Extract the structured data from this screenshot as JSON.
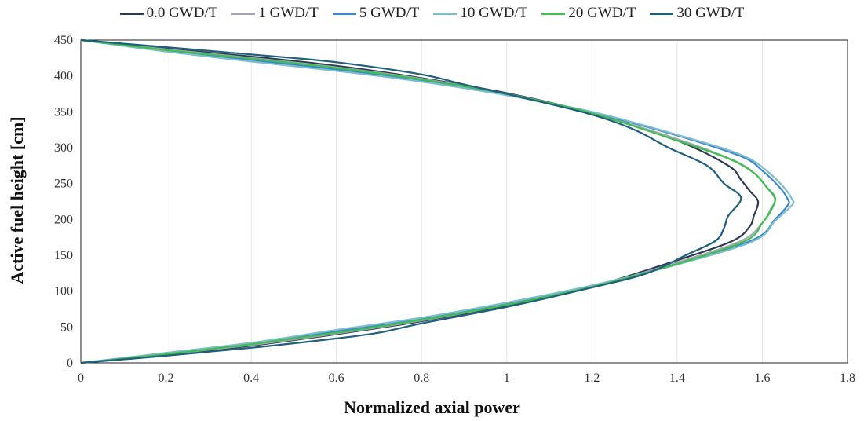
{
  "chart_data": {
    "type": "line",
    "xlabel": "Normalized  axial power",
    "ylabel": "Active  fuel height  [cm]",
    "xlim": [
      0,
      1.8
    ],
    "ylim": [
      0,
      450
    ],
    "x_ticks": [
      "0",
      "0.2",
      "0.4",
      "0.6",
      "0.8",
      "1",
      "1.2",
      "1.4",
      "1.6",
      "1.8"
    ],
    "y_ticks": [
      "0",
      "50",
      "100",
      "150",
      "200",
      "250",
      "300",
      "350",
      "400",
      "450"
    ],
    "grid": "vertical",
    "legend_position": "top",
    "series": [
      {
        "name": "0.0 GWD/T",
        "color": "#2e3a52",
        "points": [
          [
            0,
            0
          ],
          [
            0.2,
            11
          ],
          [
            0.4,
            24
          ],
          [
            0.6,
            40
          ],
          [
            0.8,
            58
          ],
          [
            1.0,
            80
          ],
          [
            1.2,
            106
          ],
          [
            1.4,
            143
          ],
          [
            1.53,
            170
          ],
          [
            1.57,
            190
          ],
          [
            1.58,
            205
          ],
          [
            1.59,
            225
          ],
          [
            1.57,
            240
          ],
          [
            1.55,
            255
          ],
          [
            1.52,
            275
          ],
          [
            1.4,
            310
          ],
          [
            1.2,
            348
          ],
          [
            1.0,
            376
          ],
          [
            0.8,
            397
          ],
          [
            0.6,
            414
          ],
          [
            0.4,
            427
          ],
          [
            0.2,
            438
          ],
          [
            0,
            450
          ]
        ]
      },
      {
        "name": "1 GWD/T",
        "color": "#a3a6b4",
        "points": [
          [
            0,
            0
          ],
          [
            0.2,
            12
          ],
          [
            0.4,
            25
          ],
          [
            0.6,
            41
          ],
          [
            0.8,
            59
          ],
          [
            1.0,
            81
          ],
          [
            1.2,
            106
          ],
          [
            1.4,
            140
          ],
          [
            1.55,
            170
          ],
          [
            1.6,
            195
          ],
          [
            1.62,
            215
          ],
          [
            1.63,
            228
          ],
          [
            1.61,
            245
          ],
          [
            1.58,
            265
          ],
          [
            1.53,
            283
          ],
          [
            1.4,
            312
          ],
          [
            1.2,
            348
          ],
          [
            1.0,
            375
          ],
          [
            0.8,
            396
          ],
          [
            0.6,
            412
          ],
          [
            0.4,
            425
          ],
          [
            0.2,
            437
          ],
          [
            0,
            450
          ]
        ]
      },
      {
        "name": "5 GWD/T",
        "color": "#3a86d1",
        "points": [
          [
            0,
            0
          ],
          [
            0.2,
            13
          ],
          [
            0.4,
            27
          ],
          [
            0.6,
            44
          ],
          [
            0.8,
            62
          ],
          [
            1.0,
            83
          ],
          [
            1.2,
            107
          ],
          [
            1.4,
            138
          ],
          [
            1.58,
            172
          ],
          [
            1.63,
            200
          ],
          [
            1.66,
            220
          ],
          [
            1.66,
            228
          ],
          [
            1.64,
            245
          ],
          [
            1.6,
            268
          ],
          [
            1.55,
            288
          ],
          [
            1.4,
            317
          ],
          [
            1.2,
            349
          ],
          [
            1.0,
            374
          ],
          [
            0.8,
            394
          ],
          [
            0.6,
            409
          ],
          [
            0.4,
            422
          ],
          [
            0.2,
            435
          ],
          [
            0,
            450
          ]
        ]
      },
      {
        "name": "10 GWD/T",
        "color": "#7fbccc",
        "points": [
          [
            0,
            0
          ],
          [
            0.2,
            14
          ],
          [
            0.4,
            28
          ],
          [
            0.6,
            46
          ],
          [
            0.8,
            63
          ],
          [
            1.0,
            84
          ],
          [
            1.2,
            108
          ],
          [
            1.4,
            137
          ],
          [
            1.58,
            170
          ],
          [
            1.63,
            198
          ],
          [
            1.67,
            220
          ],
          [
            1.67,
            228
          ],
          [
            1.65,
            245
          ],
          [
            1.61,
            268
          ],
          [
            1.55,
            290
          ],
          [
            1.4,
            318
          ],
          [
            1.2,
            350
          ],
          [
            1.0,
            373
          ],
          [
            0.8,
            392
          ],
          [
            0.6,
            407
          ],
          [
            0.4,
            420
          ],
          [
            0.2,
            434
          ],
          [
            0,
            450
          ]
        ]
      },
      {
        "name": "20 GWD/T",
        "color": "#3fbf4f",
        "points": [
          [
            0,
            0
          ],
          [
            0.2,
            12
          ],
          [
            0.4,
            26
          ],
          [
            0.6,
            42
          ],
          [
            0.8,
            60
          ],
          [
            1.0,
            81
          ],
          [
            1.2,
            106
          ],
          [
            1.4,
            138
          ],
          [
            1.56,
            170
          ],
          [
            1.6,
            195
          ],
          [
            1.62,
            212
          ],
          [
            1.63,
            230
          ],
          [
            1.61,
            245
          ],
          [
            1.58,
            265
          ],
          [
            1.52,
            285
          ],
          [
            1.4,
            310
          ],
          [
            1.2,
            348
          ],
          [
            1.0,
            375
          ],
          [
            0.8,
            395
          ],
          [
            0.6,
            411
          ],
          [
            0.4,
            424
          ],
          [
            0.2,
            436
          ],
          [
            0,
            450
          ]
        ]
      },
      {
        "name": "30 GWD/T",
        "color": "#1f5f7e",
        "points": [
          [
            0,
            0
          ],
          [
            0.2,
            10
          ],
          [
            0.4,
            21
          ],
          [
            0.6,
            34
          ],
          [
            0.7,
            42
          ],
          [
            0.8,
            55
          ],
          [
            1.0,
            78
          ],
          [
            1.2,
            105
          ],
          [
            1.33,
            125
          ],
          [
            1.42,
            150
          ],
          [
            1.49,
            170
          ],
          [
            1.51,
            188
          ],
          [
            1.52,
            205
          ],
          [
            1.55,
            230
          ],
          [
            1.51,
            250
          ],
          [
            1.47,
            275
          ],
          [
            1.38,
            300
          ],
          [
            1.3,
            325
          ],
          [
            1.2,
            346
          ],
          [
            1.05,
            368
          ],
          [
            0.9,
            388
          ],
          [
            0.8,
            402
          ],
          [
            0.6,
            419
          ],
          [
            0.4,
            430
          ],
          [
            0.2,
            440
          ],
          [
            0,
            450
          ]
        ]
      }
    ]
  }
}
